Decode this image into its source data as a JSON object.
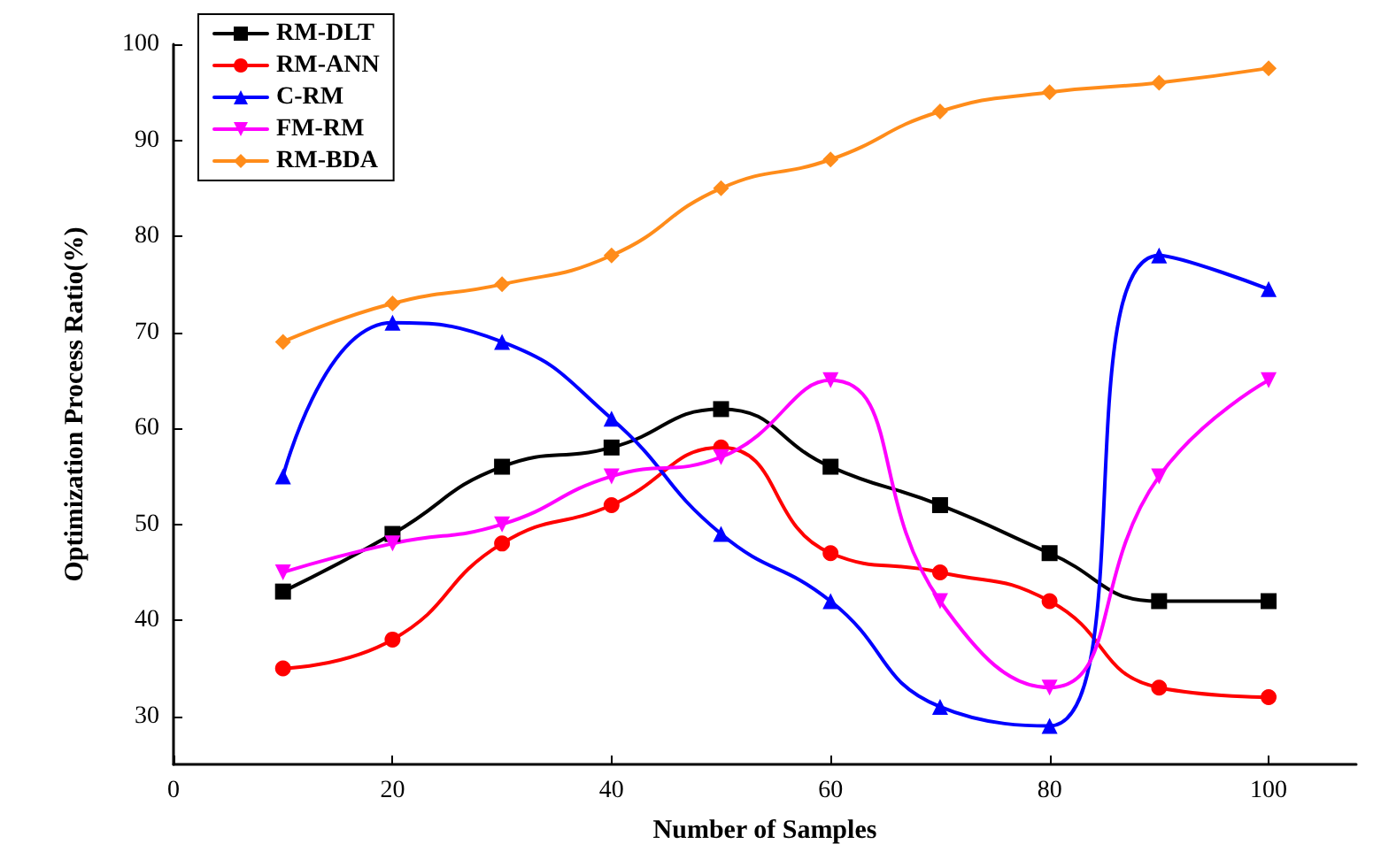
{
  "chart_data": {
    "type": "line",
    "xlabel": "Number of Samples",
    "ylabel": "Optimization Process Ratio(%)",
    "x": [
      10,
      20,
      30,
      40,
      50,
      60,
      70,
      80,
      90,
      100
    ],
    "xlim": [
      0,
      108
    ],
    "xticks": [
      0,
      20,
      40,
      60,
      80,
      100
    ],
    "ylim": [
      25,
      100
    ],
    "yticks": [
      30,
      40,
      50,
      60,
      70,
      80,
      90,
      100
    ],
    "grid": false,
    "legend": "top left",
    "series": [
      {
        "name": "RM-DLT",
        "color": "#000000",
        "marker": "square",
        "values": [
          43,
          49,
          56,
          58,
          62,
          56,
          52,
          47,
          42,
          42
        ]
      },
      {
        "name": "RM-ANN",
        "color": "#ff0000",
        "marker": "circle",
        "values": [
          35,
          38,
          48,
          52,
          58,
          47,
          45,
          42,
          33,
          32
        ]
      },
      {
        "name": "C-RM",
        "color": "#0000ff",
        "marker": "triangle",
        "values": [
          55,
          71,
          69,
          61,
          49,
          42,
          31,
          29,
          78,
          74.5
        ]
      },
      {
        "name": "FM-RM",
        "color": "#ff00ff",
        "marker": "triangle-down",
        "values": [
          45,
          48,
          50,
          55,
          57,
          65,
          42,
          33,
          55,
          65
        ]
      },
      {
        "name": "RM-BDA",
        "color": "#ff8c1a",
        "marker": "diamond",
        "values": [
          69,
          73,
          75,
          78,
          85,
          88,
          93,
          95,
          96,
          97.5
        ]
      }
    ]
  }
}
